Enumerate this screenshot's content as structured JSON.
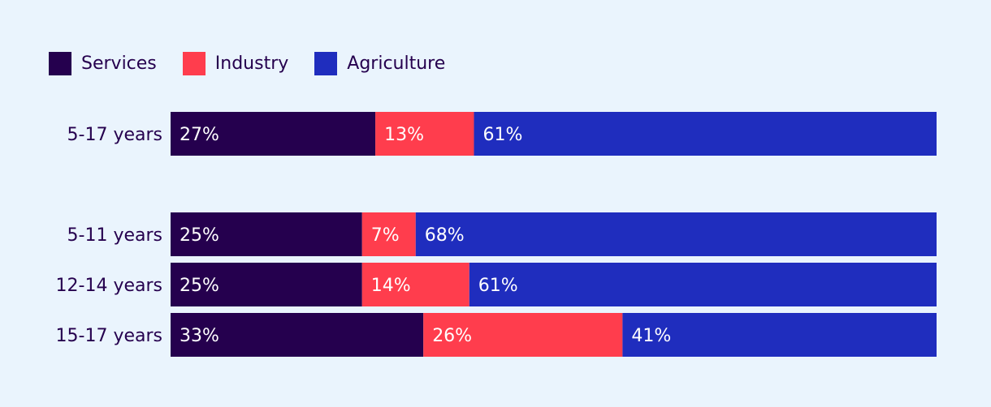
{
  "colors": {
    "background": "#eaf4fd",
    "services": "#25004e",
    "industry": "#ff3d4d",
    "agriculture": "#1f2dbe",
    "label_text": "#25004e",
    "bar_text": "#ffffff"
  },
  "legend": {
    "items": [
      {
        "label": "Services",
        "color": "#25004e"
      },
      {
        "label": "Industry",
        "color": "#ff3d4d"
      },
      {
        "label": "Agriculture",
        "color": "#1f2dbe"
      }
    ]
  },
  "chart_data": {
    "type": "bar",
    "orientation": "horizontal",
    "stacked": true,
    "categories": [
      "5-17 years",
      "5-11 years",
      "12-14 years",
      "15-17 years"
    ],
    "series": [
      {
        "name": "Services",
        "values": [
          27,
          25,
          25,
          33
        ],
        "labels": [
          "27%",
          "25%",
          "25%",
          "33%"
        ]
      },
      {
        "name": "Industry",
        "values": [
          13,
          7,
          14,
          26
        ],
        "labels": [
          "13%",
          "7%",
          "14%",
          "26%"
        ]
      },
      {
        "name": "Agriculture",
        "values": [
          61,
          68,
          61,
          41
        ],
        "labels": [
          "61%",
          "68%",
          "61%",
          "41%"
        ]
      }
    ],
    "grid": false,
    "legend_position": "top-left"
  }
}
